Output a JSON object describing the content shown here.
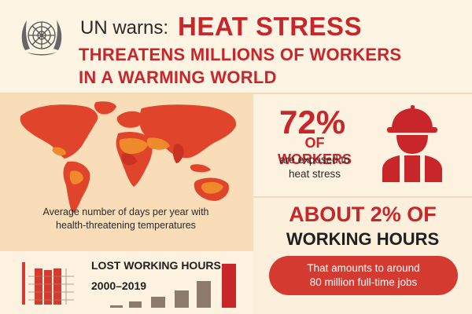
{
  "header": {
    "lead": "UN warns:",
    "headline": "HEAT STRESS",
    "subline_1": "THREATENS MILLIONS OF WORKERS",
    "subline_2": "IN A WARMING WORLD"
  },
  "map": {
    "caption_line_1": "Average number of days per year with",
    "caption_line_2": "health-threatening temperatures"
  },
  "workers_stat": {
    "value": "72%",
    "label": "OF WORKERS",
    "desc_line_1": "are exposed to",
    "desc_line_2": "heat stress"
  },
  "hours_stat": {
    "value_line": "ABOUT 2% OF",
    "label_line": "WORKING HOURS",
    "pill_line_1": "That amounts to around",
    "pill_line_2": "80 million full-time jobs"
  },
  "lost_hours": {
    "title": "LOST WORKING HOURS,",
    "years": "2000–2019"
  },
  "colors": {
    "accent_red": "#c8262a",
    "map_red": "#e0452c",
    "map_orange": "#ee8a2c",
    "bar_taupe": "#8c7b6b",
    "background": "#fcf0dc"
  },
  "icons": [
    "un-emblem",
    "construction-worker-icon",
    "bar-chart-icon",
    "world-map"
  ]
}
